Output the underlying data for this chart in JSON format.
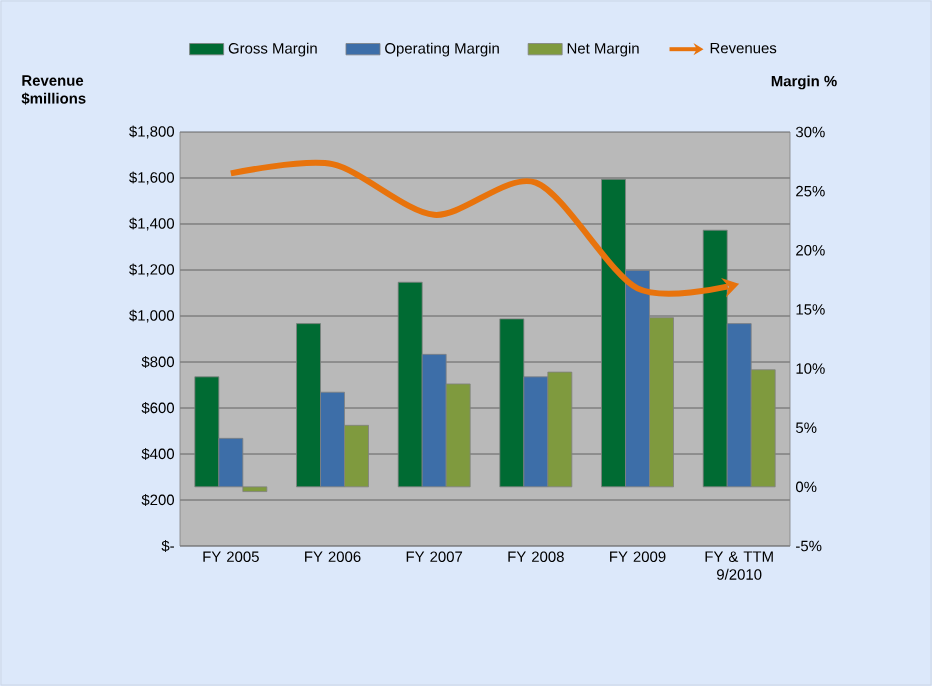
{
  "chart_data": {
    "type": "bar",
    "categories": [
      "FY 2005",
      "FY 2006",
      "FY 2007",
      "FY 2008",
      "FY 2009",
      "FY & TTM 9/2010"
    ],
    "ylabel": "Revenue $millions",
    "y2label": "Margin %",
    "series": [
      {
        "name": "Gross Margin",
        "color": "#006b33",
        "axis": "y2",
        "values": [
          9.3,
          13.8,
          17.3,
          14.2,
          26.0,
          21.7
        ]
      },
      {
        "name": "Operating Margin",
        "color": "#3d6ea8",
        "axis": "y2",
        "values": [
          4.1,
          8.0,
          11.2,
          9.3,
          18.3,
          13.8
        ]
      },
      {
        "name": "Net Margin",
        "color": "#7f9a3e",
        "axis": "y2",
        "values": [
          -0.4,
          5.2,
          8.7,
          9.7,
          14.3,
          9.9
        ]
      },
      {
        "name": "Revenues",
        "color": "#e8730c",
        "axis": "y",
        "type": "line",
        "values": [
          1620,
          1660,
          1440,
          1580,
          1120,
          1140
        ]
      }
    ],
    "ylim": [
      0,
      1800
    ],
    "yticks": [
      {
        "value": 0,
        "label": "$-"
      },
      {
        "value": 200,
        "label": "$200"
      },
      {
        "value": 400,
        "label": "$400"
      },
      {
        "value": 600,
        "label": "$600"
      },
      {
        "value": 800,
        "label": "$800"
      },
      {
        "value": 1000,
        "label": "$1,000"
      },
      {
        "value": 1200,
        "label": "$1,200"
      },
      {
        "value": 1400,
        "label": "$1,400"
      },
      {
        "value": 1600,
        "label": "$1,600"
      },
      {
        "value": 1800,
        "label": "$1,800"
      }
    ],
    "y2lim": [
      -5,
      30
    ],
    "y2ticks": [
      {
        "value": -5,
        "label": "-5%"
      },
      {
        "value": 0,
        "label": "0%"
      },
      {
        "value": 5,
        "label": "5%"
      },
      {
        "value": 10,
        "label": "10%"
      },
      {
        "value": 15,
        "label": "15%"
      },
      {
        "value": 20,
        "label": "20%"
      },
      {
        "value": 25,
        "label": "25%"
      },
      {
        "value": 30,
        "label": "30%"
      }
    ],
    "grid": "y",
    "legend": "top"
  }
}
